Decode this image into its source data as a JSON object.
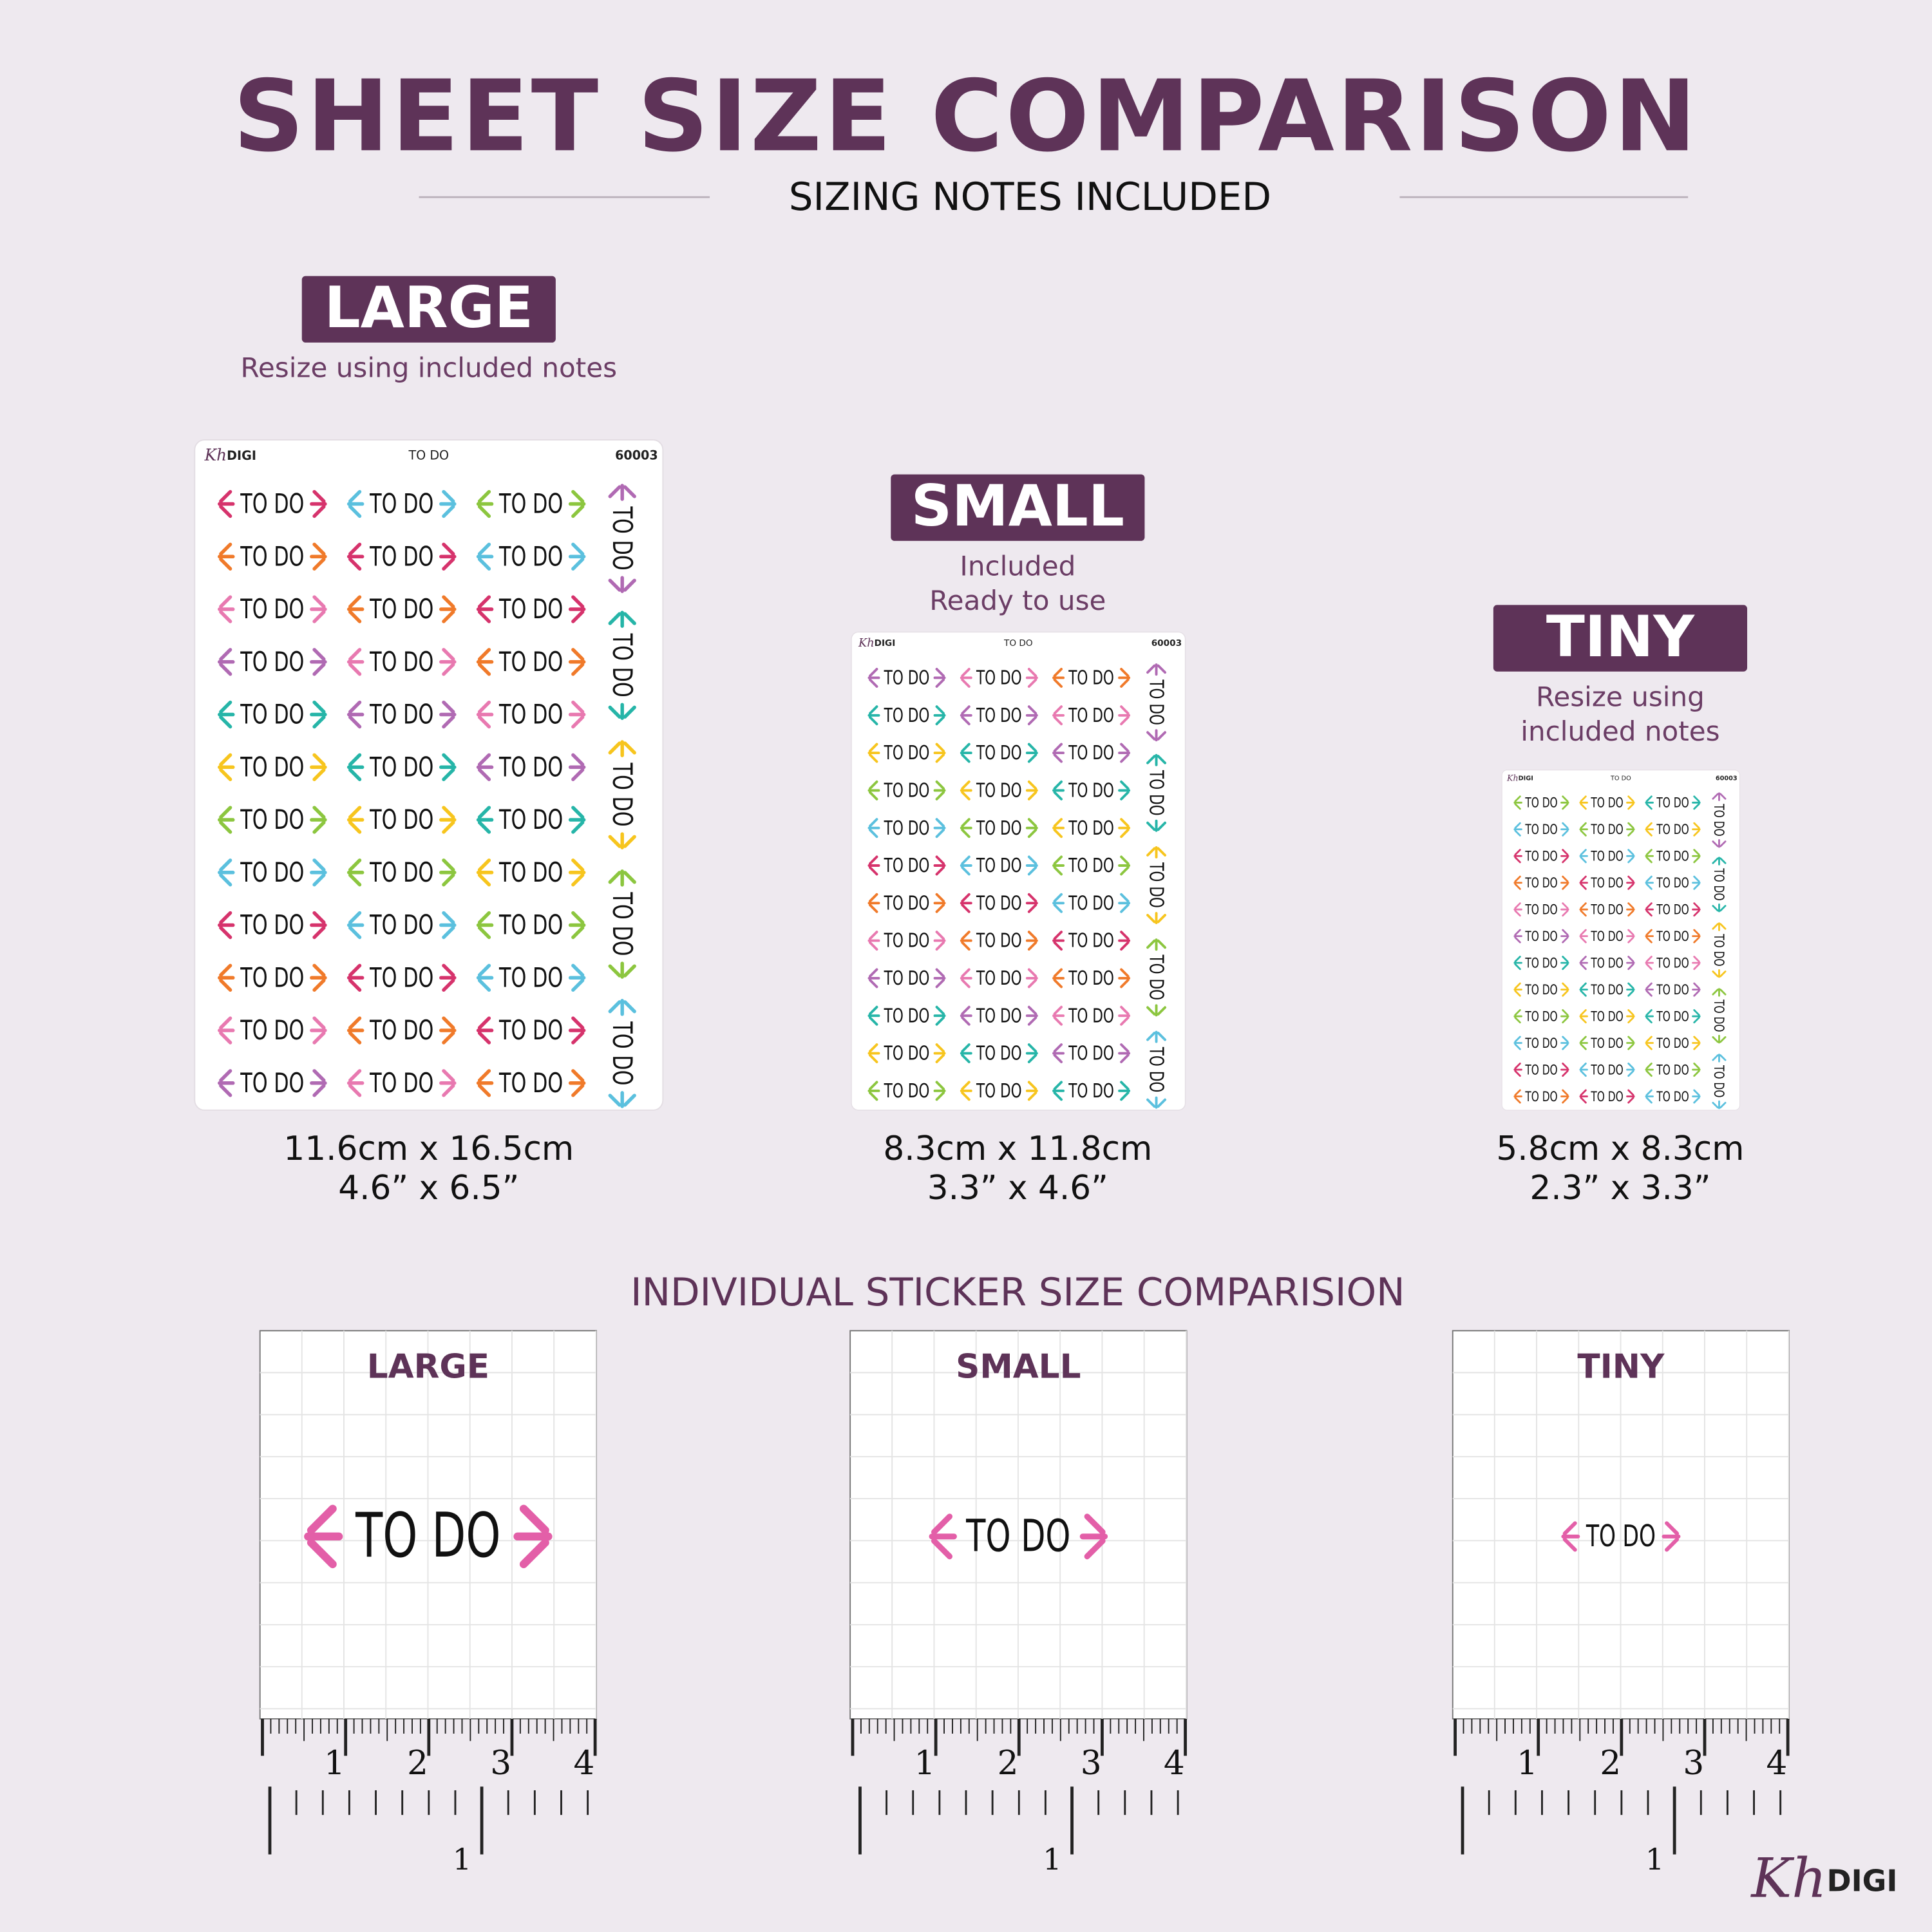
{
  "header": {
    "title": "SHEET SIZE COMPARISON",
    "subtitle": "SIZING NOTES INCLUDED"
  },
  "sheet": {
    "brand_script": "Kh",
    "brand": "DIGI",
    "label": "TO DO",
    "code": "60003",
    "sticker": "TO DO"
  },
  "sizes": [
    {
      "name": "LARGE",
      "note": [
        "Resize using included notes"
      ],
      "metric": "11.6cm x 16.5cm",
      "imperial": "4.6” x 6.5”"
    },
    {
      "name": "SMALL",
      "note": [
        "Included",
        "Ready to use"
      ],
      "metric": "8.3cm x 11.8cm",
      "imperial": "3.3” x 4.6”"
    },
    {
      "name": "TINY",
      "note": [
        "Resize using",
        "included notes"
      ],
      "metric": "5.8cm x 8.3cm",
      "imperial": "2.3” x 3.3”"
    }
  ],
  "individual": {
    "title": "INDIVIDUAL STICKER SIZE COMPARISION",
    "panels": [
      "LARGE",
      "SMALL",
      "TINY"
    ],
    "ruler_cm": [
      "1",
      "2",
      "3",
      "4"
    ],
    "ruler_in": "1"
  },
  "footer": {
    "brand_script": "Kh",
    "brand": "DIGI"
  }
}
